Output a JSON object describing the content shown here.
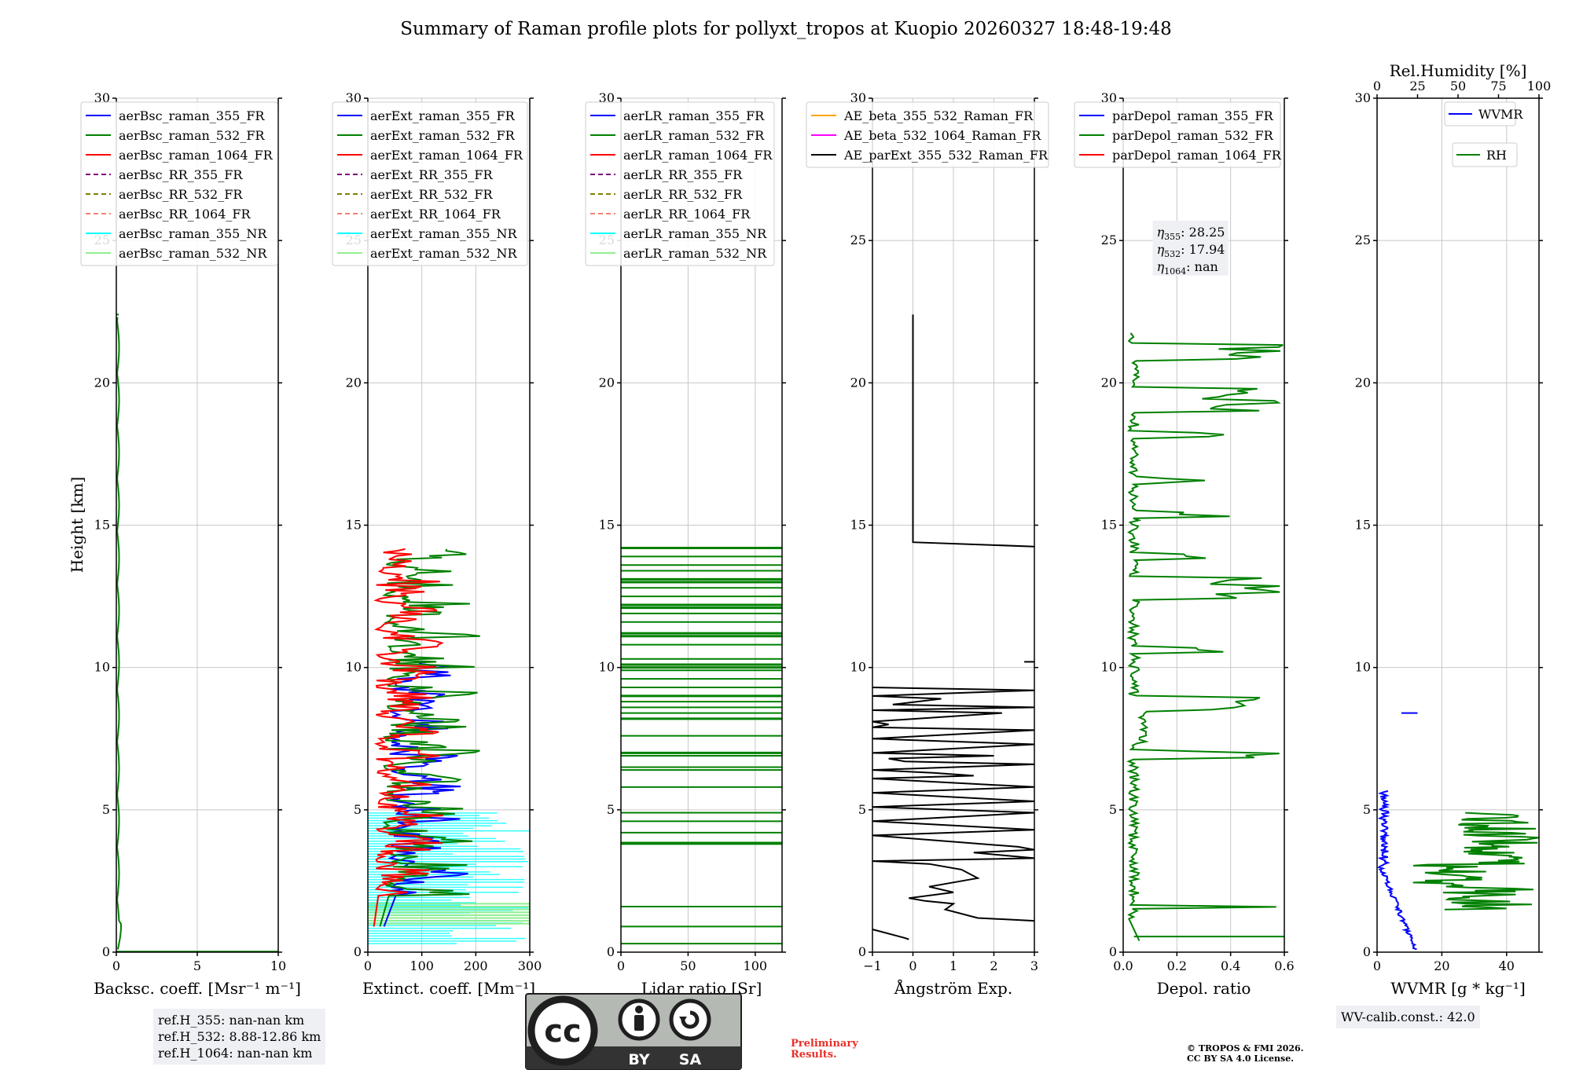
{
  "title": "Summary of Raman profile plots for pollyxt_tropos at Kuopio 20260327 18:48-19:48",
  "colors": {
    "blue": "#0000ff",
    "green": "#008000",
    "red": "#ff0000",
    "purple": "#800080",
    "olive": "#808000",
    "salmon": "#fa8072",
    "cyan": "#00ffff",
    "lightgreen": "#90ee90",
    "orange": "#ffa500",
    "magenta": "#ff00ff",
    "black": "#000000",
    "preliminary": "#e8302a"
  },
  "chart_data": [
    {
      "type": "line",
      "id": "bsc",
      "xlabel": "Backsc. coeff. [Msr⁻¹ m⁻¹]",
      "ylabel": "Height [km]",
      "xlim": [
        0,
        10
      ],
      "ylim": [
        0,
        30
      ],
      "xticks": [
        "0",
        "5",
        "10"
      ],
      "yticks": [
        "0",
        "5",
        "10",
        "15",
        "20",
        "25",
        "30"
      ],
      "legend": [
        "aerBsc_raman_355_FR",
        "aerBsc_raman_532_FR",
        "aerBsc_raman_1064_FR",
        "aerBsc_RR_355_FR",
        "aerBsc_RR_532_FR",
        "aerBsc_RR_1064_FR",
        "aerBsc_raman_355_NR",
        "aerBsc_raman_532_NR"
      ]
    },
    {
      "type": "line",
      "id": "ext",
      "xlabel": "Extinct. coeff. [Mm⁻¹]",
      "xlim": [
        0,
        300
      ],
      "ylim": [
        0,
        30
      ],
      "xticks": [
        "0",
        "100",
        "200",
        "300"
      ],
      "yticks": [
        "0",
        "5",
        "10",
        "15",
        "20",
        "25",
        "30"
      ],
      "legend": [
        "aerExt_raman_355_FR",
        "aerExt_raman_532_FR",
        "aerExt_raman_1064_FR",
        "aerExt_RR_355_FR",
        "aerExt_RR_532_FR",
        "aerExt_RR_1064_FR",
        "aerExt_raman_355_NR",
        "aerExt_raman_532_NR"
      ]
    },
    {
      "type": "line",
      "id": "lr",
      "xlabel": "Lidar ratio [Sr]",
      "xlim": [
        0,
        120
      ],
      "ylim": [
        0,
        30
      ],
      "xticks": [
        "0",
        "50",
        "100"
      ],
      "yticks": [
        "0",
        "5",
        "10",
        "15",
        "20",
        "25",
        "30"
      ],
      "legend": [
        "aerLR_raman_355_FR",
        "aerLR_raman_532_FR",
        "aerLR_raman_1064_FR",
        "aerLR_RR_355_FR",
        "aerLR_RR_532_FR",
        "aerLR_RR_1064_FR",
        "aerLR_raman_355_NR",
        "aerLR_raman_532_NR"
      ]
    },
    {
      "type": "line",
      "id": "ae",
      "xlabel": "Ångström Exp.",
      "xlim": [
        -1,
        3
      ],
      "ylim": [
        0,
        30
      ],
      "xticks": [
        "−1",
        "0",
        "1",
        "2",
        "3"
      ],
      "yticks": [
        "0",
        "5",
        "10",
        "15",
        "20",
        "25",
        "30"
      ],
      "legend": [
        "AE_beta_355_532_Raman_FR",
        "AE_beta_532_1064_Raman_FR",
        "AE_parExt_355_532_Raman_FR"
      ]
    },
    {
      "type": "line",
      "id": "dep",
      "xlabel": "Depol. ratio",
      "xlim": [
        0,
        0.6
      ],
      "ylim": [
        0,
        30
      ],
      "xticks": [
        "0.0",
        "0.2",
        "0.4",
        "0.6"
      ],
      "yticks": [
        "0",
        "5",
        "10",
        "15",
        "20",
        "25",
        "30"
      ],
      "legend": [
        "parDepol_raman_355_FR",
        "parDepol_raman_532_FR",
        "parDepol_raman_1064_FR"
      ],
      "annotation": {
        "eta355": "28.25",
        "eta532": "17.94",
        "eta1064": "nan"
      }
    },
    {
      "type": "line",
      "id": "wv",
      "xlabel": "WVMR [g * kg⁻¹]",
      "x2label": "Rel.Humidity [%]",
      "xlim": [
        0,
        50
      ],
      "x2lim": [
        0,
        100
      ],
      "ylim": [
        0,
        30
      ],
      "xticks": [
        "0",
        "20",
        "40"
      ],
      "x2ticks": [
        "0",
        "25",
        "50",
        "75",
        "100"
      ],
      "yticks": [
        "0",
        "5",
        "10",
        "15",
        "20",
        "25",
        "30"
      ],
      "legend": [
        "WVMR",
        "RH"
      ]
    }
  ],
  "refbox": {
    "l1": "ref.H_355: nan-nan km",
    "l2": "ref.H_532: 8.88-12.86 km",
    "l3": "ref.H_1064: nan-nan km"
  },
  "wvcalib": "WV-calib.const.: 42.0",
  "license": {
    "cc": "cc",
    "by": "BY",
    "sa": "SA"
  },
  "prelim": {
    "l1": "Preliminary",
    "l2": "Results."
  },
  "copyright": {
    "l1": "© TROPOS & FMI 2026.",
    "l2": "CC BY SA 4.0 License."
  }
}
